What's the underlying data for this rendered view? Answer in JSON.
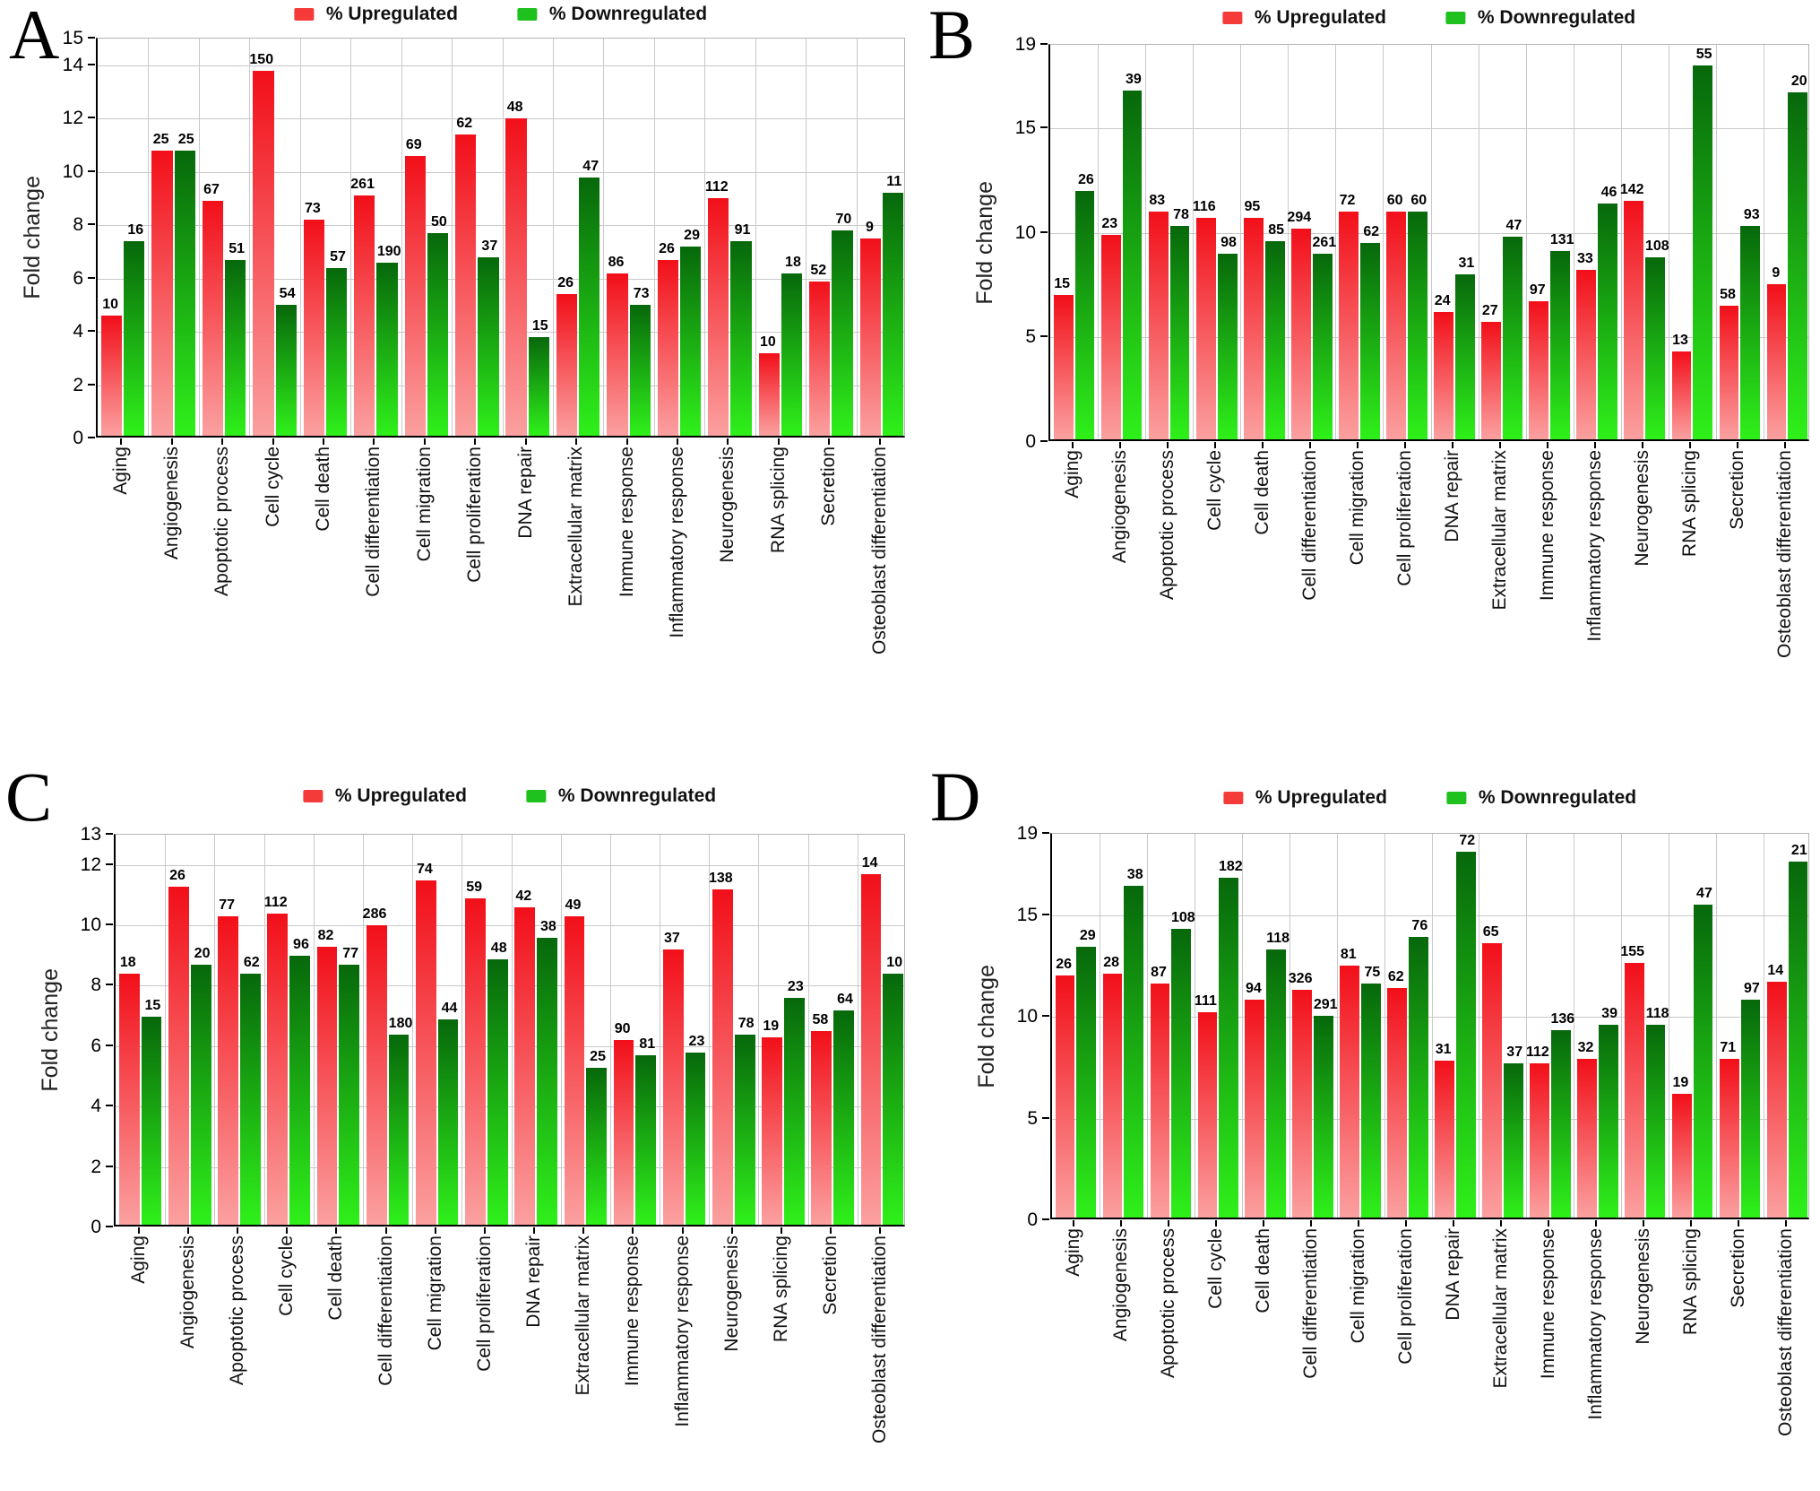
{
  "colors": {
    "up_swatch": "#f53a3a",
    "down_swatch": "#1ec11e",
    "up_bar_top": "#f20f19",
    "up_bar_bottom": "#fba0a0",
    "down_bar_top": "#07680b",
    "down_bar_bottom": "#2ff01a",
    "grid": "#c9c9c9",
    "axis": "#000000",
    "bar_label": "#000000"
  },
  "chart_data": [
    {
      "panel_label": "A",
      "type": "bar",
      "ylabel": "Fold change",
      "ylim": [
        0,
        15
      ],
      "yticks": [
        0,
        2,
        4,
        6,
        8,
        10,
        12,
        14,
        15
      ],
      "grid": true,
      "legend_position": "top-center",
      "categories": [
        "Aging",
        "Angiogenesis",
        "Apoptotic process",
        "Cell cycle",
        "Cell death",
        "Cell differentiation",
        "Cell migration",
        "Cell proliferation",
        "DNA repair",
        "Extracellular matrix",
        "Immune response",
        "Inflammatory response",
        "Neurogenesis",
        "RNA splicing",
        "Secretion",
        "Osteoblast differentiation"
      ],
      "series": [
        {
          "name": "% Upregulated",
          "values": [
            4.5,
            10.7,
            8.8,
            13.7,
            8.1,
            9.0,
            10.5,
            11.3,
            11.9,
            5.3,
            6.1,
            6.6,
            8.9,
            3.1,
            5.8,
            7.4
          ],
          "bar_labels": [
            10,
            25,
            67,
            150,
            73,
            261,
            69,
            62,
            48,
            26,
            86,
            26,
            112,
            10,
            52,
            9
          ]
        },
        {
          "name": "% Downregulated",
          "values": [
            7.3,
            10.7,
            6.6,
            4.9,
            6.3,
            6.5,
            7.6,
            6.7,
            3.7,
            9.7,
            4.9,
            7.1,
            7.3,
            6.1,
            7.7,
            9.1
          ],
          "bar_labels": [
            16,
            25,
            51,
            54,
            57,
            190,
            50,
            37,
            15,
            47,
            73,
            29,
            91,
            18,
            70,
            11
          ]
        }
      ]
    },
    {
      "panel_label": "B",
      "type": "bar",
      "ylabel": "Fold change",
      "ylim": [
        0,
        19
      ],
      "yticks": [
        0,
        5,
        10,
        15,
        19
      ],
      "grid": true,
      "legend_position": "top-center",
      "categories": [
        "Aging",
        "Angiogenesis",
        "Apoptotic process",
        "Cell cycle",
        "Cell death",
        "Cell differentiation",
        "Cell migration",
        "Cell proliferation",
        "DNA repair",
        "Extracellular matrix",
        "Immune response",
        "Inflammatory response",
        "Neurogenesis",
        "RNA splicing",
        "Secretion",
        "Osteoblast differentiation"
      ],
      "series": [
        {
          "name": "% Upregulated",
          "values": [
            6.9,
            9.8,
            10.9,
            10.6,
            10.6,
            10.1,
            10.9,
            10.9,
            6.1,
            5.6,
            6.6,
            8.1,
            11.4,
            4.2,
            6.4,
            7.4
          ],
          "bar_labels": [
            15,
            23,
            83,
            116,
            95,
            294,
            72,
            60,
            24,
            27,
            97,
            33,
            142,
            13,
            58,
            9
          ]
        },
        {
          "name": "% Downregulated",
          "values": [
            11.9,
            16.7,
            10.2,
            8.9,
            9.5,
            8.9,
            9.4,
            10.9,
            7.9,
            9.7,
            9.0,
            11.3,
            8.7,
            17.9,
            10.2,
            16.6
          ],
          "bar_labels": [
            26,
            39,
            78,
            98,
            85,
            261,
            62,
            60,
            31,
            47,
            131,
            46,
            108,
            55,
            93,
            20
          ]
        }
      ]
    },
    {
      "panel_label": "C",
      "type": "bar",
      "ylabel": "Fold change",
      "ylim": [
        0,
        13
      ],
      "yticks": [
        0,
        2,
        4,
        6,
        8,
        10,
        12,
        13
      ],
      "grid": true,
      "legend_position": "top-center",
      "categories": [
        "Aging",
        "Angiogenesis",
        "Apoptotic process",
        "Cell cycle",
        "Cell death",
        "Cell differentiation",
        "Cell migration",
        "Cell proliferation",
        "DNA repair",
        "Extracellular matrix",
        "Immune response",
        "Inflammatory response",
        "Neurogenesis",
        "RNA splicing",
        "Secretion",
        "Osteoblast differentiation"
      ],
      "series": [
        {
          "name": "% Upregulated",
          "values": [
            8.3,
            11.2,
            10.2,
            10.3,
            9.2,
            9.9,
            11.4,
            10.8,
            10.5,
            10.2,
            6.1,
            9.1,
            11.1,
            6.2,
            6.4,
            11.6
          ],
          "bar_labels": [
            18,
            26,
            77,
            112,
            82,
            286,
            74,
            59,
            42,
            49,
            90,
            37,
            138,
            19,
            58,
            14
          ]
        },
        {
          "name": "% Downregulated",
          "values": [
            6.9,
            8.6,
            8.3,
            8.9,
            8.6,
            6.3,
            6.8,
            8.8,
            9.5,
            5.2,
            5.6,
            5.7,
            6.3,
            7.5,
            7.1,
            8.3
          ],
          "bar_labels": [
            15,
            20,
            62,
            96,
            77,
            180,
            44,
            48,
            38,
            25,
            81,
            23,
            78,
            23,
            64,
            10
          ]
        }
      ]
    },
    {
      "panel_label": "D",
      "type": "bar",
      "ylabel": "Fold change",
      "ylim": [
        0,
        19
      ],
      "yticks": [
        0,
        5,
        10,
        15,
        19
      ],
      "grid": true,
      "legend_position": "top-center",
      "categories": [
        "Aging",
        "Angiogenesis",
        "Apoptotic process",
        "Cell cycle",
        "Cell death",
        "Cell differentiation",
        "Cell migration",
        "Cell proliferation",
        "DNA repair",
        "Extracellular matrix",
        "Immune response",
        "Inflammatory response",
        "Neurogenesis",
        "RNA splicing",
        "Secretion",
        "Osteoblast differentiation"
      ],
      "series": [
        {
          "name": "% Upregulated",
          "values": [
            11.9,
            12.0,
            11.5,
            10.1,
            10.7,
            11.2,
            12.4,
            11.3,
            7.7,
            13.5,
            7.6,
            7.8,
            12.5,
            6.1,
            7.8,
            11.6
          ],
          "bar_labels": [
            26,
            28,
            87,
            111,
            94,
            326,
            81,
            62,
            31,
            65,
            112,
            32,
            155,
            19,
            71,
            14
          ]
        },
        {
          "name": "% Downregulated",
          "values": [
            13.3,
            16.3,
            14.2,
            16.7,
            13.2,
            9.9,
            11.5,
            13.8,
            18.0,
            7.6,
            9.2,
            9.5,
            9.5,
            15.4,
            10.7,
            17.5
          ],
          "bar_labels": [
            29,
            38,
            108,
            182,
            118,
            291,
            75,
            76,
            72,
            37,
            136,
            39,
            118,
            47,
            97,
            21
          ]
        }
      ]
    }
  ]
}
